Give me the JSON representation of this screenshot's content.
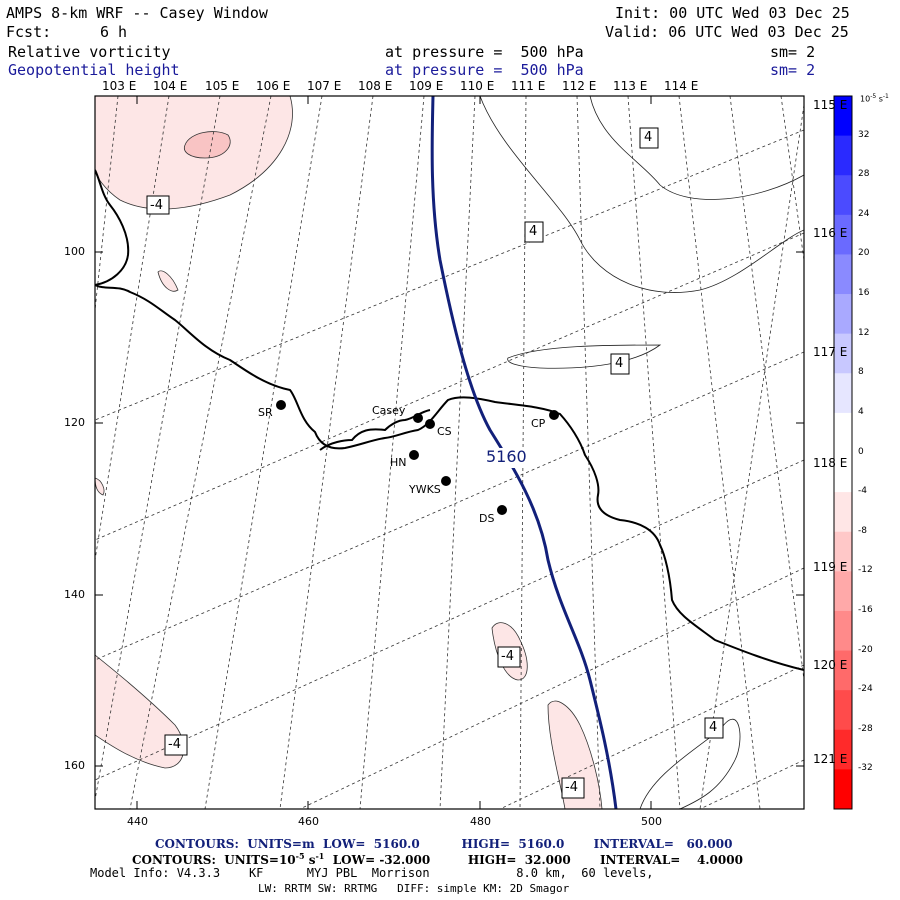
{
  "header": {
    "title": "AMPS 8-km WRF -- Casey Window",
    "init": "Init: 00 UTC Wed 03 Dec 25",
    "fcst_label": "Fcst:",
    "fcst_value": "6 h",
    "valid": "Valid: 06 UTC Wed 03 Dec 25",
    "field1_name": "Relative vorticity",
    "field1_pressure": "at pressure =  500 hPa",
    "field1_sm": "sm= 2",
    "field2_name": "Geopotential height",
    "field2_pressure": "at pressure =  500 hPa",
    "field2_sm": "sm= 2"
  },
  "map": {
    "top_longitudes": [
      "103 E",
      "104 E",
      "105 E",
      "106 E",
      "107 E",
      "108 E",
      "109 E",
      "110 E",
      "111 E",
      "112 E",
      "113 E",
      "114 E"
    ],
    "right_longitudes": [
      "115 E",
      "116 E",
      "117 E",
      "118 E",
      "119 E",
      "120 E",
      "121 E"
    ],
    "x_ticks": [
      "440",
      "460",
      "480",
      "500"
    ],
    "y_ticks": [
      "100",
      "120",
      "140",
      "160"
    ],
    "stations": [
      {
        "name": "SR"
      },
      {
        "name": "Casey"
      },
      {
        "name": "CS"
      },
      {
        "name": "CP"
      },
      {
        "name": "HN"
      },
      {
        "name": "YWKS"
      },
      {
        "name": "DS"
      }
    ],
    "contour_labels": [
      "-4",
      "4",
      "4",
      "4",
      "-4",
      "-4",
      "-4",
      "4"
    ],
    "height_label": "5160",
    "colors": {
      "geopotential": "#12207a",
      "coast": "#000000",
      "vort_neg_light": "#fde6e6",
      "vort_neg_med": "#f9c4c4"
    }
  },
  "colorbar": {
    "units": "10",
    "units_exp": "-5",
    "units_suffix": "s",
    "units_suffix_exp": "-1",
    "ticks": [
      "32",
      "28",
      "24",
      "20",
      "16",
      "12",
      "8",
      "4",
      "0",
      "-4",
      "-8",
      "-12",
      "-16",
      "-20",
      "-24",
      "-28",
      "-32"
    ],
    "colors": [
      "#0000ff",
      "#2a2aff",
      "#4b4bff",
      "#6a6aff",
      "#8a8aff",
      "#a9a9ff",
      "#c8c8ff",
      "#e6e6ff",
      "#ffffff",
      "#ffffff",
      "#ffe6e6",
      "#ffc8c8",
      "#ffa9a9",
      "#ff8a8a",
      "#ff6a6a",
      "#ff4b4b",
      "#ff2a2a",
      "#ff0000"
    ]
  },
  "footer": {
    "line1": "CONTOURS:  UNITS=m  LOW=  5160.0          HIGH=  5160.0       INTERVAL=   60.000",
    "line2_a": "CONTOURS:  UNITS=10",
    "line2_exp1": "-5",
    "line2_b": " s",
    "line2_exp2": "-1",
    "line2_c": "  LOW= -32.000         HIGH=  32.000       INTERVAL=    4.0000",
    "line3": "Model Info: V4.3.3    KF      MYJ PBL  Morrison            8.0 km,  60 levels,",
    "line4": "LW: RRTM SW: RRTMG   DIFF: simple KM: 2D Smagor"
  }
}
